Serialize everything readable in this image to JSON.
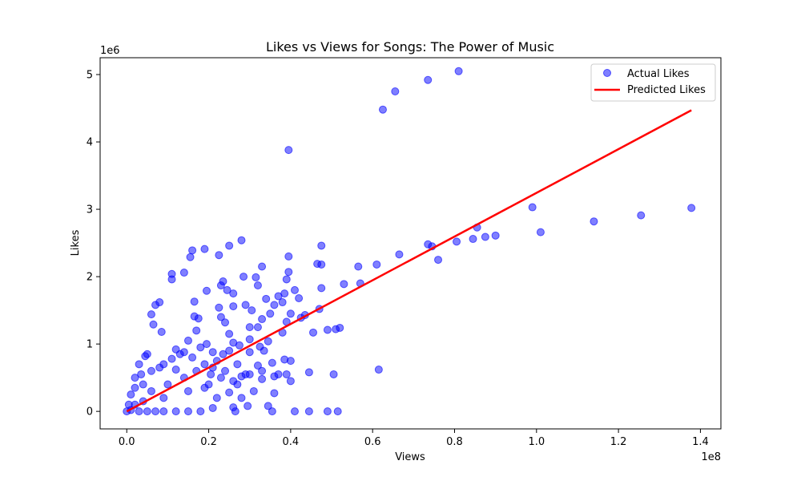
{
  "chart_data": {
    "type": "scatter",
    "title": "Likes vs Views for Songs: The Power of Music",
    "xlabel": "Views",
    "ylabel": "Likes",
    "x_offset_label": "1e8",
    "y_offset_label": "1e6",
    "xlim": [
      -0.065,
      1.45
    ],
    "ylim": [
      -0.26,
      5.25
    ],
    "x_ticks": [
      0.0,
      0.2,
      0.4,
      0.6,
      0.8,
      1.0,
      1.2,
      1.4
    ],
    "x_tick_labels": [
      "0.0",
      "0.2",
      "0.4",
      "0.6",
      "0.8",
      "1.0",
      "1.2",
      "1.4"
    ],
    "y_ticks": [
      0,
      1,
      2,
      3,
      4,
      5
    ],
    "y_tick_labels": [
      "0",
      "1",
      "2",
      "3",
      "4",
      "5"
    ],
    "grid": false,
    "legend_position": "top-right",
    "colors": {
      "points": "#0000ff",
      "line": "#ff0000"
    },
    "series": [
      {
        "name": "Actual Likes",
        "kind": "scatter",
        "points": [
          [
            0.81,
            5.05
          ],
          [
            0.735,
            4.92
          ],
          [
            0.655,
            4.75
          ],
          [
            0.625,
            4.48
          ],
          [
            0.395,
            3.88
          ],
          [
            1.378,
            3.02
          ],
          [
            0.99,
            3.03
          ],
          [
            1.255,
            2.91
          ],
          [
            1.14,
            2.82
          ],
          [
            1.01,
            2.66
          ],
          [
            0.9,
            2.61
          ],
          [
            0.875,
            2.59
          ],
          [
            0.845,
            2.56
          ],
          [
            0.855,
            2.73
          ],
          [
            0.805,
            2.52
          ],
          [
            0.735,
            2.48
          ],
          [
            0.745,
            2.45
          ],
          [
            0.76,
            2.25
          ],
          [
            0.665,
            2.33
          ],
          [
            0.61,
            2.18
          ],
          [
            0.565,
            2.15
          ],
          [
            0.57,
            1.9
          ],
          [
            0.53,
            1.89
          ],
          [
            0.615,
            0.62
          ],
          [
            0.52,
            1.24
          ],
          [
            0.51,
            1.22
          ],
          [
            0.49,
            1.21
          ],
          [
            0.505,
            0.55
          ],
          [
            0.445,
            0.58
          ],
          [
            0.41,
            0.0
          ],
          [
            0.445,
            0.0
          ],
          [
            0.49,
            0.0
          ],
          [
            0.515,
            0.0
          ],
          [
            0.355,
            0.0
          ],
          [
            0.465,
            2.19
          ],
          [
            0.475,
            2.46
          ],
          [
            0.475,
            2.18
          ],
          [
            0.475,
            1.83
          ],
          [
            0.47,
            1.52
          ],
          [
            0.455,
            1.17
          ],
          [
            0.435,
            1.43
          ],
          [
            0.425,
            1.39
          ],
          [
            0.42,
            1.68
          ],
          [
            0.41,
            1.8
          ],
          [
            0.395,
            2.3
          ],
          [
            0.395,
            2.07
          ],
          [
            0.39,
            1.96
          ],
          [
            0.385,
            1.75
          ],
          [
            0.37,
            1.71
          ],
          [
            0.38,
            1.62
          ],
          [
            0.39,
            1.33
          ],
          [
            0.4,
            1.45
          ],
          [
            0.36,
            1.58
          ],
          [
            0.34,
            1.67
          ],
          [
            0.33,
            2.15
          ],
          [
            0.32,
            1.87
          ],
          [
            0.315,
            1.99
          ],
          [
            0.305,
            1.5
          ],
          [
            0.29,
            1.58
          ],
          [
            0.285,
            2.0
          ],
          [
            0.28,
            2.54
          ],
          [
            0.25,
            2.46
          ],
          [
            0.225,
            2.32
          ],
          [
            0.19,
            2.41
          ],
          [
            0.16,
            2.39
          ],
          [
            0.155,
            2.29
          ],
          [
            0.14,
            2.06
          ],
          [
            0.11,
            2.04
          ],
          [
            0.11,
            1.96
          ],
          [
            0.08,
            1.62
          ],
          [
            0.07,
            1.58
          ],
          [
            0.06,
            1.44
          ],
          [
            0.065,
            1.29
          ],
          [
            0.085,
            1.18
          ],
          [
            0.165,
            1.63
          ],
          [
            0.23,
            1.87
          ],
          [
            0.235,
            1.93
          ],
          [
            0.26,
            1.75
          ],
          [
            0.26,
            1.56
          ],
          [
            0.245,
            1.8
          ],
          [
            0.195,
            1.79
          ],
          [
            0.225,
            1.54
          ],
          [
            0.175,
            1.38
          ],
          [
            0.165,
            1.41
          ],
          [
            0.38,
            1.17
          ],
          [
            0.35,
            1.45
          ],
          [
            0.345,
            1.04
          ],
          [
            0.33,
            1.37
          ],
          [
            0.355,
            0.72
          ],
          [
            0.385,
            0.77
          ],
          [
            0.4,
            0.75
          ],
          [
            0.39,
            0.55
          ],
          [
            0.4,
            0.45
          ],
          [
            0.36,
            0.52
          ],
          [
            0.37,
            0.55
          ],
          [
            0.345,
            0.08
          ],
          [
            0.36,
            0.27
          ],
          [
            0.33,
            0.48
          ],
          [
            0.32,
            0.68
          ],
          [
            0.31,
            0.3
          ],
          [
            0.295,
            0.08
          ],
          [
            0.265,
            0.0
          ],
          [
            0.25,
            0.28
          ],
          [
            0.26,
            0.06
          ],
          [
            0.21,
            0.65
          ],
          [
            0.2,
            0.4
          ],
          [
            0.29,
            0.55
          ],
          [
            0.3,
            0.88
          ],
          [
            0.3,
            1.07
          ],
          [
            0.325,
            0.96
          ],
          [
            0.335,
            0.9
          ],
          [
            0.32,
            1.25
          ],
          [
            0.3,
            1.25
          ],
          [
            0.275,
            0.98
          ],
          [
            0.24,
            1.32
          ],
          [
            0.23,
            1.4
          ],
          [
            0.25,
            1.15
          ],
          [
            0.26,
            1.02
          ],
          [
            0.27,
            0.7
          ],
          [
            0.28,
            0.52
          ],
          [
            0.15,
            1.05
          ],
          [
            0.18,
            0.95
          ],
          [
            0.14,
            0.88
          ],
          [
            0.12,
            0.92
          ],
          [
            0.17,
            1.2
          ],
          [
            0.195,
            1.0
          ],
          [
            0.21,
            0.88
          ],
          [
            0.22,
            0.75
          ],
          [
            0.24,
            0.6
          ],
          [
            0.26,
            0.45
          ],
          [
            0.045,
            0.82
          ],
          [
            0.05,
            0.85
          ],
          [
            0.03,
            0.7
          ],
          [
            0.035,
            0.55
          ],
          [
            0.02,
            0.35
          ],
          [
            0.02,
            0.5
          ],
          [
            0.01,
            0.25
          ],
          [
            0.005,
            0.1
          ],
          [
            0.0,
            0.0
          ],
          [
            0.01,
            0.02
          ],
          [
            0.03,
            0.0
          ],
          [
            0.05,
            0.0
          ],
          [
            0.07,
            0.0
          ],
          [
            0.09,
            0.0
          ],
          [
            0.12,
            0.0
          ],
          [
            0.15,
            0.0
          ],
          [
            0.18,
            0.0
          ],
          [
            0.21,
            0.05
          ],
          [
            0.08,
            0.65
          ],
          [
            0.1,
            0.4
          ],
          [
            0.12,
            0.62
          ],
          [
            0.14,
            0.5
          ],
          [
            0.06,
            0.3
          ],
          [
            0.09,
            0.2
          ],
          [
            0.15,
            0.3
          ],
          [
            0.17,
            0.6
          ],
          [
            0.19,
            0.35
          ],
          [
            0.23,
            0.5
          ],
          [
            0.22,
            0.2
          ],
          [
            0.11,
            0.78
          ],
          [
            0.13,
            0.85
          ],
          [
            0.09,
            0.7
          ],
          [
            0.06,
            0.6
          ],
          [
            0.04,
            0.4
          ],
          [
            0.16,
            0.8
          ],
          [
            0.19,
            0.7
          ],
          [
            0.205,
            0.55
          ],
          [
            0.235,
            0.85
          ],
          [
            0.25,
            0.9
          ],
          [
            0.27,
            0.4
          ],
          [
            0.28,
            0.2
          ],
          [
            0.3,
            0.55
          ],
          [
            0.33,
            0.6
          ],
          [
            0.02,
            0.1
          ],
          [
            0.04,
            0.15
          ]
        ]
      },
      {
        "name": "Predicted Likes",
        "kind": "line",
        "points": [
          [
            0.0,
            0.0
          ],
          [
            1.378,
            4.47
          ]
        ]
      }
    ]
  }
}
